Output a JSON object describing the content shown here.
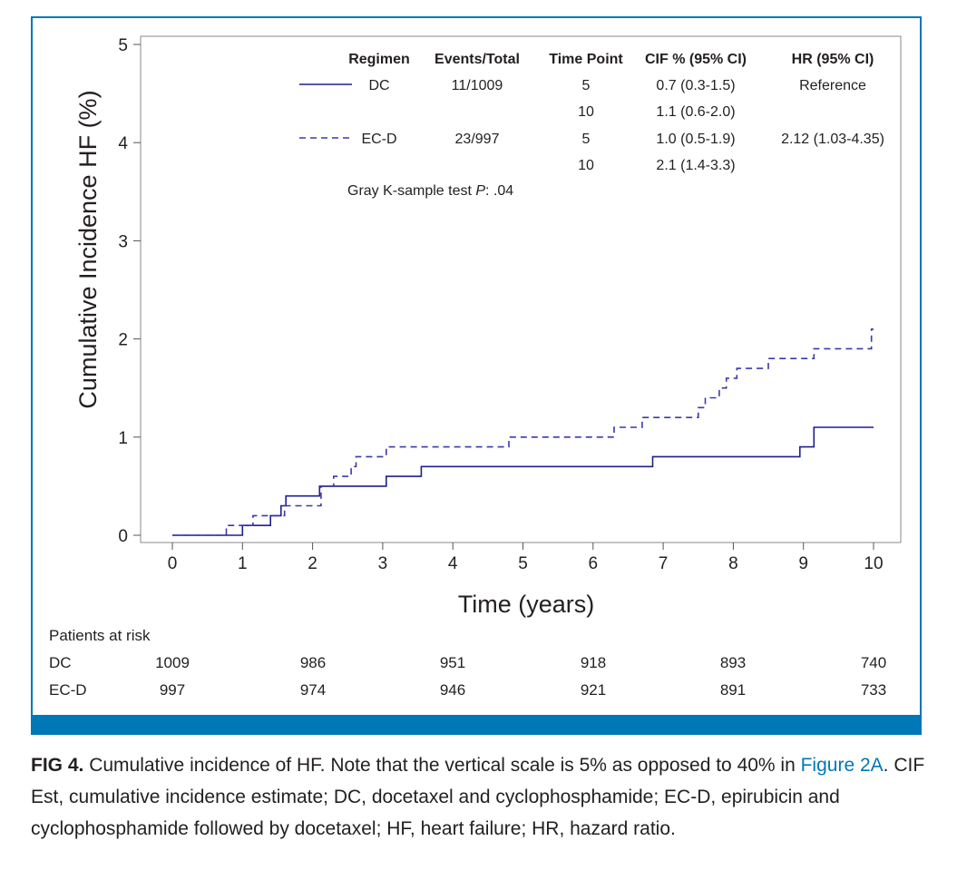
{
  "chart_data": {
    "type": "line",
    "xlabel": "Time (years)",
    "ylabel": "Cumulative Incidence HF (%)",
    "xlim": [
      0,
      10
    ],
    "ylim": [
      0,
      5
    ],
    "x_ticks": [
      0,
      1,
      2,
      3,
      4,
      5,
      6,
      7,
      8,
      9,
      10
    ],
    "y_ticks": [
      0,
      1,
      2,
      3,
      4,
      5
    ],
    "grid": false,
    "series": [
      {
        "name": "DC",
        "style": "solid",
        "color": "#1f1f8f",
        "x": [
          0,
          1.0,
          1.4,
          1.55,
          1.62,
          2.1,
          2.4,
          3.05,
          3.55,
          6.85,
          8.95,
          9.15,
          10.0
        ],
        "y": [
          0,
          0.1,
          0.2,
          0.3,
          0.4,
          0.5,
          0.5,
          0.6,
          0.7,
          0.8,
          0.9,
          1.1,
          1.1
        ]
      },
      {
        "name": "EC-D",
        "style": "dashed",
        "color": "#3a3aa8",
        "x": [
          0,
          0.77,
          1.15,
          1.6,
          2.12,
          2.3,
          2.55,
          2.62,
          3.05,
          4.8,
          6.3,
          6.7,
          7.5,
          7.6,
          7.8,
          7.9,
          8.05,
          8.25,
          8.5,
          9.15,
          9.97,
          10.0
        ],
        "y": [
          0,
          0.1,
          0.2,
          0.3,
          0.5,
          0.6,
          0.7,
          0.8,
          0.9,
          1.0,
          1.1,
          1.2,
          1.3,
          1.4,
          1.5,
          1.6,
          1.7,
          1.7,
          1.8,
          1.9,
          2.1,
          2.1
        ]
      }
    ],
    "table": {
      "headers": [
        "Regimen",
        "Events/Total",
        "Time Point",
        "CIF % (95% CI)",
        "HR (95% CI)"
      ],
      "rows": [
        [
          "DC",
          "11/1009",
          "5",
          "0.7 (0.3-1.5)",
          "Reference"
        ],
        [
          "",
          "",
          "10",
          "1.1 (0.6-2.0)",
          ""
        ],
        [
          "EC-D",
          "23/997",
          "5",
          "1.0 (0.5-1.9)",
          "2.12 (1.03-4.35)"
        ],
        [
          "",
          "",
          "10",
          "2.1 (1.4-3.3)",
          ""
        ]
      ]
    },
    "annotation": {
      "test_text": "Gray K-sample test ",
      "p_label": "P",
      "p_value": ": .04"
    }
  },
  "patients_at_risk": {
    "title": "Patients at risk",
    "time_points": [
      0,
      2,
      4,
      6,
      8,
      10
    ],
    "rows": [
      {
        "label": "DC",
        "values": [
          "1009",
          "986",
          "951",
          "918",
          "893",
          "740"
        ]
      },
      {
        "label": "EC-D",
        "values": [
          "997",
          "974",
          "946",
          "921",
          "891",
          "733"
        ]
      }
    ]
  },
  "caption": {
    "label": "FIG 4.",
    "text_1": " Cumulative incidence of HF. Note that the vertical scale is 5% as opposed to 40% in ",
    "link": "Figure 2A",
    "text_2": ". CIF Est, cumulative incidence estimate; DC, docetaxel and cyclophosphamide; EC-D, epirubicin and cyclophosphamide followed by docetaxel; HF, heart failure; HR, hazard ratio."
  },
  "colors": {
    "frame": "#0077b6",
    "dc_line": "#1f1f8f",
    "ecd_line": "#3a3aa8"
  }
}
